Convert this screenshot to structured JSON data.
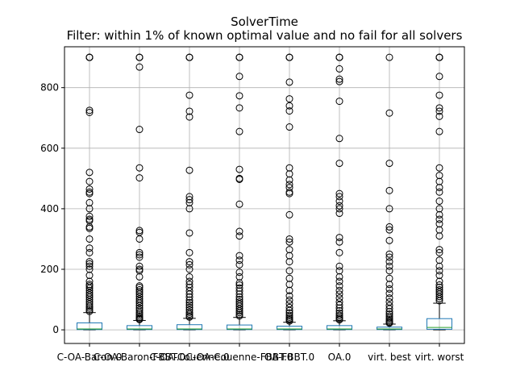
{
  "chart_data": {
    "type": "box",
    "title": "SolverTime",
    "subtitle": "Filter: within 1% of known optimal value and no fail for all solvers",
    "xlabel": "",
    "ylabel": "",
    "ylim": [
      -45,
      935
    ],
    "yticks": [
      0,
      200,
      400,
      600,
      800
    ],
    "grid": true,
    "series": [
      {
        "name": "C-OA-Baron.0",
        "q1": 1,
        "median": 3,
        "q3": 23,
        "whisker_low": 0,
        "whisker_high": 57,
        "fliers": [
          900,
          900,
          900,
          900,
          725,
          718,
          520,
          490,
          465,
          455,
          450,
          420,
          400,
          375,
          365,
          360,
          340,
          335,
          300,
          270,
          255,
          225,
          218,
          210,
          200,
          180,
          160,
          150,
          145,
          138,
          130,
          122,
          115,
          108,
          100,
          92,
          85,
          78,
          72,
          66,
          61
        ]
      },
      {
        "name": "C-OA-Baron-FBBT.0",
        "q1": 1,
        "median": 3,
        "q3": 14,
        "whisker_low": 0,
        "whisker_high": 31,
        "fliers": [
          900,
          900,
          900,
          868,
          662,
          535,
          502,
          328,
          322,
          300,
          255,
          248,
          240,
          210,
          200,
          195,
          175,
          145,
          140,
          132,
          125,
          118,
          110,
          102,
          95,
          88,
          80,
          72,
          65,
          58,
          52,
          46,
          41,
          37,
          34
        ]
      },
      {
        "name": "C-OA-Couenne.0",
        "q1": 1,
        "median": 3,
        "q3": 17,
        "whisker_low": 0,
        "whisker_high": 38,
        "fliers": [
          900,
          900,
          900,
          775,
          722,
          703,
          527,
          440,
          430,
          420,
          400,
          320,
          255,
          225,
          215,
          200,
          175,
          160,
          150,
          140,
          128,
          118,
          108,
          98,
          90,
          82,
          74,
          66,
          58,
          52,
          46,
          42
        ]
      },
      {
        "name": "C-OA-Couenne-FBBT.0",
        "q1": 1,
        "median": 3,
        "q3": 16,
        "whisker_low": 0,
        "whisker_high": 41,
        "fliers": [
          900,
          900,
          900,
          837,
          773,
          733,
          655,
          530,
          500,
          497,
          415,
          325,
          310,
          245,
          230,
          215,
          190,
          175,
          155,
          148,
          138,
          128,
          118,
          108,
          100,
          92,
          85,
          78,
          70,
          63,
          57,
          51,
          46
        ]
      },
      {
        "name": "OA-FBBT.0",
        "q1": 1,
        "median": 3,
        "q3": 12,
        "whisker_low": 0,
        "whisker_high": 25,
        "fliers": [
          900,
          900,
          900,
          818,
          763,
          740,
          723,
          670,
          535,
          515,
          495,
          480,
          470,
          455,
          450,
          380,
          300,
          290,
          265,
          245,
          225,
          195,
          170,
          150,
          130,
          112,
          98,
          86,
          74,
          64,
          56,
          48,
          42,
          37,
          33,
          29
        ]
      },
      {
        "name": "OA.0",
        "q1": 1,
        "median": 3,
        "q3": 14,
        "whisker_low": 0,
        "whisker_high": 30,
        "fliers": [
          900,
          900,
          900,
          862,
          828,
          820,
          755,
          632,
          550,
          450,
          440,
          425,
          410,
          400,
          385,
          305,
          290,
          255,
          210,
          195,
          175,
          160,
          145,
          130,
          118,
          105,
          92,
          82,
          72,
          63,
          55,
          48,
          42,
          37,
          33
        ]
      },
      {
        "name": "virt. best",
        "q1": 1,
        "median": 3,
        "q3": 9,
        "whisker_low": 0,
        "whisker_high": 19,
        "fliers": [
          900,
          716,
          550,
          460,
          400,
          340,
          330,
          295,
          250,
          240,
          225,
          210,
          195,
          170,
          150,
          135,
          120,
          105,
          92,
          80,
          70,
          60,
          52,
          45,
          39,
          34,
          29,
          25,
          22
        ]
      },
      {
        "name": "virt. worst",
        "q1": 2,
        "median": 8,
        "q3": 37,
        "whisker_low": 0,
        "whisker_high": 88,
        "fliers": [
          900,
          900,
          900,
          900,
          837,
          775,
          733,
          722,
          705,
          655,
          535,
          510,
          490,
          470,
          455,
          425,
          400,
          380,
          365,
          350,
          330,
          310,
          265,
          255,
          230,
          210,
          195,
          180,
          160,
          148,
          140,
          132,
          125,
          118,
          110,
          103,
          96
        ]
      }
    ]
  }
}
